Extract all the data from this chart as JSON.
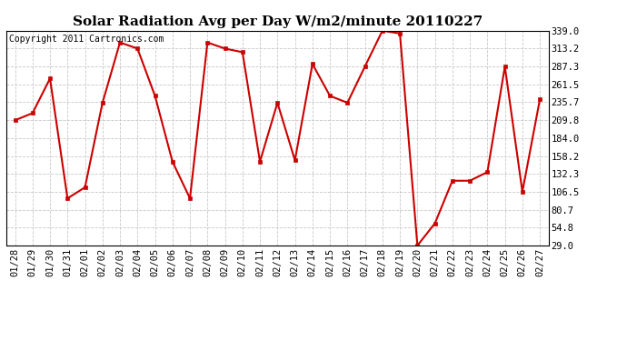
{
  "title": "Solar Radiation Avg per Day W/m2/minute 20110227",
  "copyright": "Copyright 2011 Cartronics.com",
  "dates": [
    "01/28",
    "01/29",
    "01/30",
    "01/31",
    "02/01",
    "02/02",
    "02/03",
    "02/04",
    "02/05",
    "02/06",
    "02/07",
    "02/08",
    "02/09",
    "02/10",
    "02/11",
    "02/12",
    "02/13",
    "02/14",
    "02/15",
    "02/16",
    "02/17",
    "02/18",
    "02/19",
    "02/20",
    "02/21",
    "02/22",
    "02/23",
    "02/24",
    "02/25",
    "02/26",
    "02/27"
  ],
  "values": [
    209.8,
    220.0,
    270.0,
    97.0,
    113.0,
    235.0,
    322.0,
    313.2,
    245.0,
    150.0,
    97.0,
    322.0,
    313.2,
    308.0,
    150.0,
    235.0,
    152.0,
    291.0,
    245.0,
    235.0,
    287.3,
    339.0,
    335.0,
    29.0,
    61.0,
    122.5,
    122.5,
    135.0,
    287.3,
    106.5,
    240.0
  ],
  "line_color": "#cc0000",
  "marker_color": "#cc0000",
  "bg_color": "#ffffff",
  "grid_color": "#c8c8c8",
  "ylim_min": 29.0,
  "ylim_max": 339.0,
  "yticks": [
    29.0,
    54.8,
    80.7,
    106.5,
    132.3,
    158.2,
    184.0,
    209.8,
    235.7,
    261.5,
    287.3,
    313.2,
    339.0
  ],
  "ytick_labels": [
    "29.0",
    "54.8",
    "80.7",
    "106.5",
    "132.3",
    "158.2",
    "184.0",
    "209.8",
    "235.7",
    "261.5",
    "287.3",
    "313.2",
    "339.0"
  ],
  "title_fontsize": 11,
  "copyright_fontsize": 7,
  "tick_fontsize": 7.5
}
